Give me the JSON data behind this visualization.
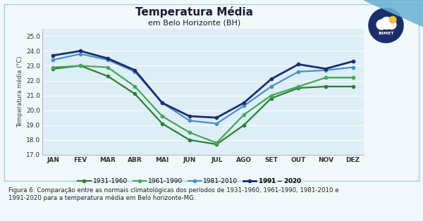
{
  "title": "Temperatura Média",
  "subtitle": "em Belo Horizonte (BH)",
  "ylabel": "Temperatura média (°C)",
  "months": [
    "JAN",
    "FEV",
    "MAR",
    "ABR",
    "MAI",
    "JUN",
    "JUL",
    "AGO",
    "SET",
    "OUT",
    "NOV",
    "DEZ"
  ],
  "series": {
    "1931-1960": [
      22.8,
      23.0,
      22.3,
      21.1,
      19.1,
      18.0,
      17.7,
      19.0,
      20.8,
      21.5,
      21.6,
      21.6
    ],
    "1961-1990": [
      22.9,
      23.0,
      22.9,
      21.6,
      19.6,
      18.5,
      17.8,
      19.7,
      21.0,
      21.6,
      22.2,
      22.2
    ],
    "1981-2010": [
      23.4,
      23.8,
      23.4,
      22.6,
      20.5,
      19.3,
      19.1,
      20.3,
      21.6,
      22.6,
      22.7,
      22.9
    ],
    "1991-2020": [
      23.7,
      24.0,
      23.5,
      22.7,
      20.5,
      19.6,
      19.5,
      20.5,
      22.1,
      23.1,
      22.8,
      23.3
    ]
  },
  "colors": {
    "1931-1960": "#2e7d32",
    "1961-1990": "#43a857",
    "1981-2010": "#4a90c4",
    "1991-2020": "#1a2e6b"
  },
  "linewidths": {
    "1931-1960": 1.6,
    "1961-1990": 1.6,
    "1981-2010": 1.6,
    "1991-2020": 2.0
  },
  "ylim": [
    17.0,
    25.5
  ],
  "yticks": [
    17.0,
    18.0,
    19.0,
    20.0,
    21.0,
    22.0,
    23.0,
    24.0,
    25.0
  ],
  "chart_bg": "#ddeef7",
  "outer_bg": "#f0f8fb",
  "border_color": "#aacfe0",
  "caption": "Figura 6: Comparação entre as normais climatológicas dos períodos de 1931-1960, 1961-1990, 1981-2010 e\n1991-2020 para a temperatura média em Belo horizonte-MG.",
  "title_fontsize": 11,
  "subtitle_fontsize": 8,
  "ylabel_fontsize": 6,
  "tick_fontsize": 6.5,
  "legend_fontsize": 6.5,
  "caption_fontsize": 6.2,
  "logo_color": "#1a2e6b",
  "deco_color": "#6ab0d4"
}
